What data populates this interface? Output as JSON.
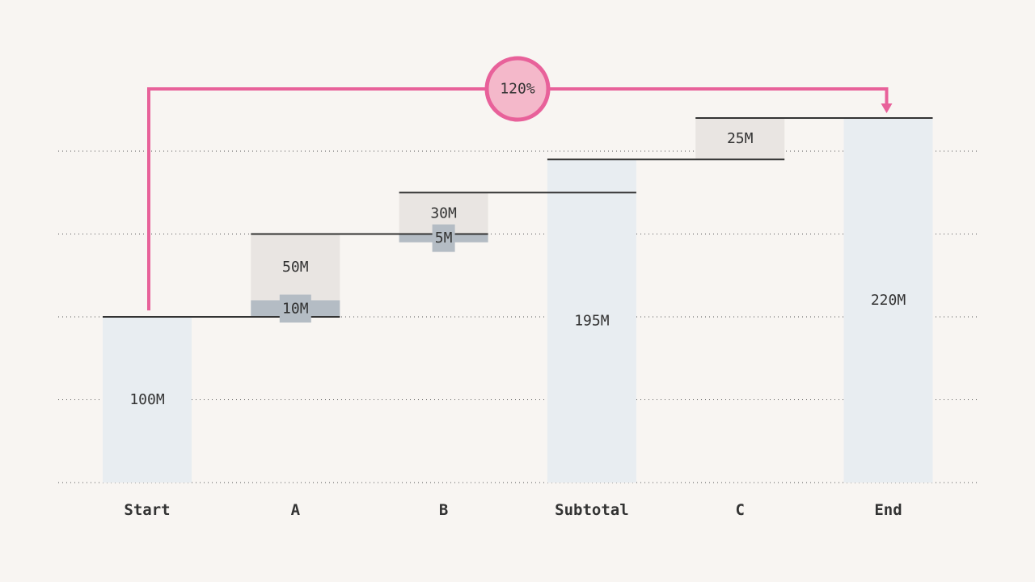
{
  "chart_data": {
    "type": "bar",
    "subtype": "waterfall",
    "title": "",
    "xlabel": "",
    "ylabel": "",
    "ylim": [
      0,
      250
    ],
    "grid": true,
    "categories": [
      "Start",
      "A",
      "B",
      "Subtotal",
      "C",
      "End"
    ],
    "bars": [
      {
        "category": "Start",
        "kind": "total",
        "base": 0,
        "value": 100,
        "label": "100M"
      },
      {
        "category": "A",
        "kind": "increase",
        "base": 100,
        "value": 50,
        "label": "50M",
        "overlap": {
          "value": 10,
          "label": "10M"
        }
      },
      {
        "category": "B",
        "kind": "increase",
        "base": 145,
        "value": 30,
        "label": "30M",
        "overlap": {
          "value": 5,
          "label": "5M"
        }
      },
      {
        "category": "Subtotal",
        "kind": "total",
        "base": 0,
        "value": 195,
        "label": "195M"
      },
      {
        "category": "C",
        "kind": "increase",
        "base": 195,
        "value": 25,
        "label": "25M"
      },
      {
        "category": "End",
        "kind": "total",
        "base": 0,
        "value": 220,
        "label": "220M"
      }
    ],
    "growth_annotation": {
      "from": "Start",
      "to": "End",
      "label": "120%"
    },
    "colors": {
      "total_bar": "#e8edf1",
      "increase_bar": "#e9e5e2",
      "overlap_bar": "#b4bcc4",
      "connector": "#333333",
      "grid": "#555555",
      "annotation": "#e8619a",
      "annotation_fill": "#f4b8ca"
    }
  }
}
